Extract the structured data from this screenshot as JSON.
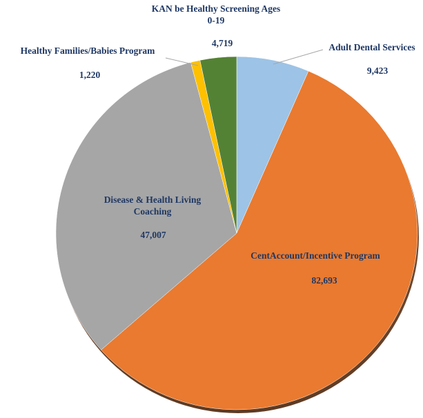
{
  "chart_data": {
    "type": "pie",
    "categories": [
      "Adult Dental Services",
      "CentAccount/Incentive Program",
      "Disease & Health Living Coaching",
      "Healthy Families/Babies Program",
      "KAN be Healthy Screening Ages 0-19"
    ],
    "values": [
      9423,
      82693,
      47007,
      1220,
      4719
    ],
    "value_labels": [
      "9,423",
      "82,693",
      "47,007",
      "1,220",
      "4,719"
    ],
    "colors": [
      "#9dc3e6",
      "#e97a30",
      "#a6a6a6",
      "#ffc000",
      "#548235"
    ]
  }
}
